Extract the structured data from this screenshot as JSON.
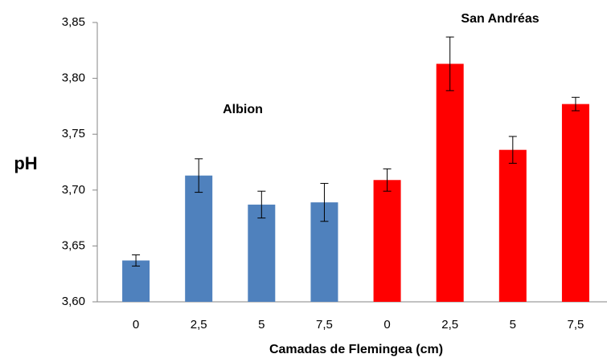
{
  "chart_data": {
    "type": "bar",
    "categories": [
      "0",
      "2,5",
      "5",
      "7,5",
      "0",
      "2,5",
      "5",
      "7,5"
    ],
    "values": [
      3.637,
      3.713,
      3.687,
      3.689,
      3.709,
      3.813,
      3.736,
      3.777
    ],
    "errors": [
      0.005,
      0.015,
      0.012,
      0.017,
      0.01,
      0.024,
      0.012,
      0.006
    ],
    "colors": [
      "#4f81bd",
      "#4f81bd",
      "#4f81bd",
      "#4f81bd",
      "#ff0000",
      "#ff0000",
      "#ff0000",
      "#ff0000"
    ],
    "ylim": [
      3.6,
      3.85
    ],
    "yticks": [
      {
        "value": 3.6,
        "label": "3,60"
      },
      {
        "value": 3.65,
        "label": "3,65"
      },
      {
        "value": 3.7,
        "label": "3,70"
      },
      {
        "value": 3.75,
        "label": "3,75"
      },
      {
        "value": 3.8,
        "label": "3,80"
      },
      {
        "value": 3.85,
        "label": "3,85"
      }
    ],
    "y_label": "pH",
    "x_label": "Camadas de Flemingea (cm)",
    "annotations": [
      "Albion",
      "San Andréas"
    ],
    "grid": false
  }
}
